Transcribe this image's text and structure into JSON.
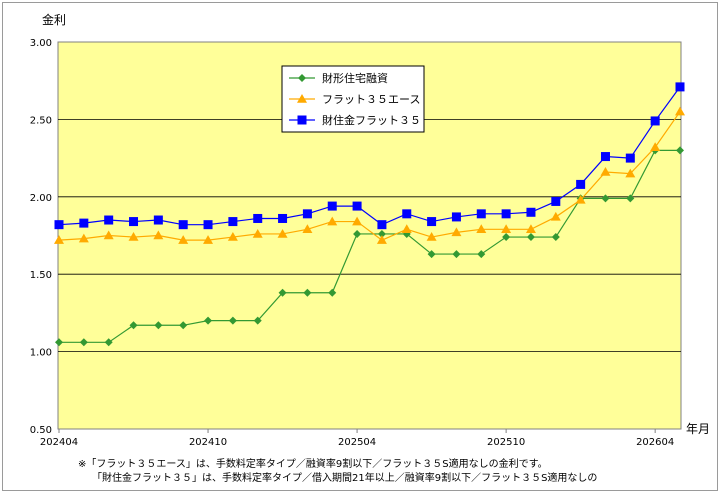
{
  "chart_data": {
    "type": "line",
    "ylabel": "金利",
    "xlabel": "年月",
    "ylim": [
      0.5,
      3.0
    ],
    "yticks": [
      "0.50",
      "1.00",
      "1.50",
      "2.00",
      "2.50",
      "3.00"
    ],
    "ytick_values": [
      0.5,
      1.0,
      1.5,
      2.0,
      2.5,
      3.0
    ],
    "xtick_labels": [
      "202404",
      "202410",
      "202504",
      "202510",
      "202604"
    ],
    "xtick_index": [
      0,
      6,
      12,
      18,
      24
    ],
    "grid": true,
    "legend_placement": "top-center",
    "series": [
      {
        "name": "財形住宅融資",
        "color": "#339933",
        "marker": "diamond",
        "values": [
          1.06,
          1.06,
          1.06,
          1.17,
          1.17,
          1.17,
          1.2,
          1.2,
          1.2,
          1.38,
          1.38,
          1.38,
          1.76,
          1.76,
          1.76,
          1.63,
          1.63,
          1.63,
          1.74,
          1.74,
          1.74,
          1.99,
          1.99,
          1.99,
          2.3,
          2.3
        ]
      },
      {
        "name": "フラット３５エース",
        "color": "#ffaa00",
        "marker": "triangle",
        "values": [
          1.72,
          1.73,
          1.75,
          1.74,
          1.75,
          1.72,
          1.72,
          1.74,
          1.76,
          1.76,
          1.79,
          1.84,
          1.84,
          1.72,
          1.79,
          1.74,
          1.77,
          1.79,
          1.79,
          1.79,
          1.87,
          1.98,
          2.16,
          2.15,
          2.32,
          2.55
        ]
      },
      {
        "name": "財住金フラット３５",
        "color": "#0000ff",
        "marker": "square",
        "values": [
          1.82,
          1.83,
          1.85,
          1.84,
          1.85,
          1.82,
          1.82,
          1.84,
          1.86,
          1.86,
          1.89,
          1.94,
          1.94,
          1.82,
          1.89,
          1.84,
          1.87,
          1.89,
          1.89,
          1.9,
          1.97,
          2.08,
          2.26,
          2.25,
          2.49,
          2.71
        ]
      }
    ]
  },
  "notes": {
    "line1": "※「フラット３５エース」は、手数料定率タイプ／融資率9割以下／フラット３５S適用なしの金利です。",
    "line2": "「財住金フラット３５」は、手数料定率タイプ／借入期間21年以上／融資率9割以下／フラット３５S適用なしの"
  },
  "colors": {
    "plot_bg": "#ffff99",
    "grid": "#000000"
  }
}
